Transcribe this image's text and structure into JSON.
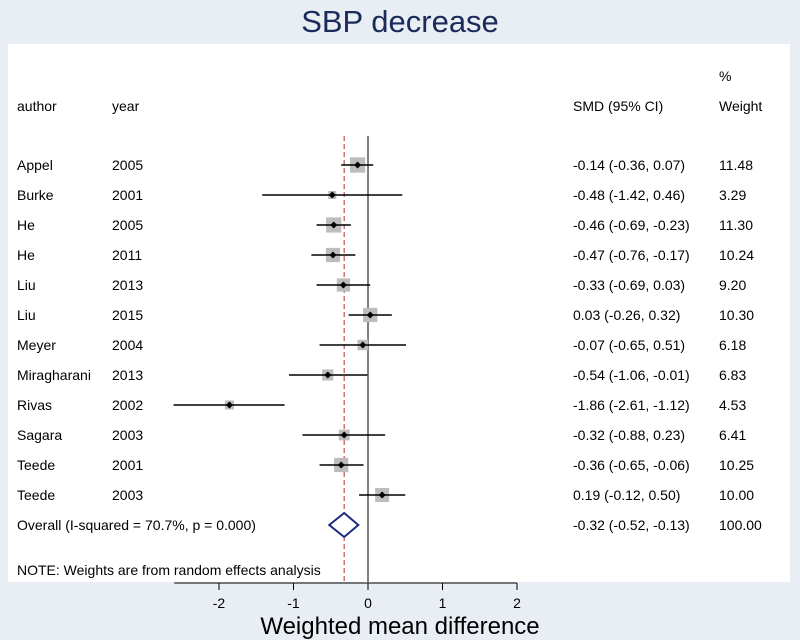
{
  "chart_data": {
    "type": "forest",
    "title": "SBP decrease",
    "xlabel": "Weighted mean difference",
    "xlim": [
      -2.6,
      2.0
    ],
    "xticks": [
      "-2",
      "-1",
      "0",
      "1",
      "2"
    ],
    "xtick_values": [
      -2,
      -1,
      0,
      1,
      2
    ],
    "reference_line": 0,
    "overall_line": -0.32,
    "headers": {
      "author": "author",
      "year": "year",
      "smd": "SMD (95% CI)",
      "weight_pct": "%",
      "weight": "Weight"
    },
    "studies": [
      {
        "author": "Appel",
        "year": "2005",
        "est": -0.14,
        "lo": -0.36,
        "hi": 0.07,
        "ci_text": "-0.14 (-0.36, 0.07)",
        "weight": "11.48"
      },
      {
        "author": "Burke",
        "year": "2001",
        "est": -0.48,
        "lo": -1.42,
        "hi": 0.46,
        "ci_text": "-0.48 (-1.42, 0.46)",
        "weight": "3.29"
      },
      {
        "author": "He",
        "year": "2005",
        "est": -0.46,
        "lo": -0.69,
        "hi": -0.23,
        "ci_text": "-0.46 (-0.69, -0.23)",
        "weight": "11.30"
      },
      {
        "author": "He",
        "year": "2011",
        "est": -0.47,
        "lo": -0.76,
        "hi": -0.17,
        "ci_text": "-0.47 (-0.76, -0.17)",
        "weight": "10.24"
      },
      {
        "author": "Liu",
        "year": "2013",
        "est": -0.33,
        "lo": -0.69,
        "hi": 0.03,
        "ci_text": "-0.33 (-0.69, 0.03)",
        "weight": "9.20"
      },
      {
        "author": "Liu",
        "year": "2015",
        "est": 0.03,
        "lo": -0.26,
        "hi": 0.32,
        "ci_text": "0.03 (-0.26, 0.32)",
        "weight": "10.30"
      },
      {
        "author": "Meyer",
        "year": "2004",
        "est": -0.07,
        "lo": -0.65,
        "hi": 0.51,
        "ci_text": "-0.07 (-0.65, 0.51)",
        "weight": "6.18"
      },
      {
        "author": "Miragharani",
        "year": "2013",
        "est": -0.54,
        "lo": -1.06,
        "hi": -0.01,
        "ci_text": "-0.54 (-1.06, -0.01)",
        "weight": "6.83"
      },
      {
        "author": "Rivas",
        "year": "2002",
        "est": -1.86,
        "lo": -2.61,
        "hi": -1.12,
        "ci_text": "-1.86 (-2.61, -1.12)",
        "weight": "4.53"
      },
      {
        "author": "Sagara",
        "year": "2003",
        "est": -0.32,
        "lo": -0.88,
        "hi": 0.23,
        "ci_text": "-0.32 (-0.88, 0.23)",
        "weight": "6.41"
      },
      {
        "author": "Teede",
        "year": "2001",
        "est": -0.36,
        "lo": -0.65,
        "hi": -0.06,
        "ci_text": "-0.36 (-0.65, -0.06)",
        "weight": "10.25"
      },
      {
        "author": "Teede",
        "year": "2003",
        "est": 0.19,
        "lo": -0.12,
        "hi": 0.5,
        "ci_text": "0.19 (-0.12, 0.50)",
        "weight": "10.00"
      }
    ],
    "overall": {
      "label": "Overall  (I-squared = 70.7%, p = 0.000)",
      "est": -0.32,
      "lo": -0.52,
      "hi": -0.13,
      "ci_text": "-0.32 (-0.52, -0.13)",
      "weight": "100.00"
    },
    "note": "NOTE: Weights are from random effects analysis",
    "colors": {
      "background": "#e8eef4",
      "panel": "#ffffff",
      "title": "#1a2b5a",
      "box": "#bdbdbd",
      "diamond": "#1a2b7a",
      "overall_line": "#b03030"
    }
  }
}
